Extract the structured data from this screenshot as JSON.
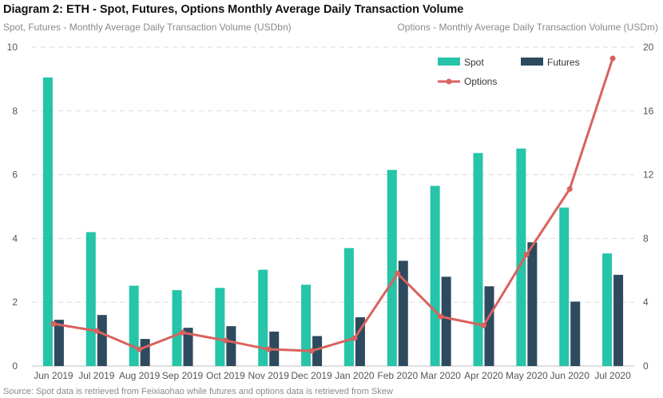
{
  "title": "Diagram 2: ETH - Spot, Futures, Options Monthly Average Daily Transaction Volume",
  "ylabel_left": "Spot, Futures - Monthly Average Daily Transaction Volume (USDbn)",
  "ylabel_right": "Options - Monthly Average Daily Transaction Volume (USDm)",
  "source": "Source: Spot data is retrieved from Feixiaohao while futures and options data is retrieved from Skew",
  "chart_data": {
    "type": "bar",
    "title": "Diagram 2: ETH - Spot, Futures, Options Monthly Average Daily Transaction Volume",
    "categories": [
      "Jun 2019",
      "Jul 2019",
      "Aug 2019",
      "Sep 2019",
      "Oct 2019",
      "Nov 2019",
      "Dec 2019",
      "Jan 2020",
      "Feb 2020",
      "Mar 2020",
      "Apr 2020",
      "May 2020",
      "Jun 2020",
      "Jul 2020"
    ],
    "series": [
      {
        "name": "Spot",
        "type": "bar",
        "axis": "left",
        "color": "#26c4a8",
        "values": [
          9.05,
          4.2,
          2.52,
          2.38,
          2.45,
          3.02,
          2.55,
          3.7,
          6.15,
          5.65,
          6.68,
          6.82,
          4.97,
          3.53
        ]
      },
      {
        "name": "Futures",
        "type": "bar",
        "axis": "left",
        "color": "#2e4a5f",
        "values": [
          1.45,
          1.6,
          0.85,
          1.2,
          1.25,
          1.08,
          0.94,
          1.53,
          3.3,
          2.8,
          2.5,
          3.88,
          2.02,
          2.86
        ]
      },
      {
        "name": "Options",
        "type": "line",
        "axis": "right",
        "color": "#d9625e",
        "values": [
          2.65,
          2.2,
          1.05,
          2.1,
          1.6,
          1.05,
          0.95,
          1.75,
          5.8,
          3.1,
          2.55,
          7.0,
          11.1,
          19.3
        ]
      }
    ],
    "ylim_left": [
      0,
      10
    ],
    "yticks_left": [
      "0",
      "2",
      "4",
      "6",
      "8",
      "10"
    ],
    "ylim_right": [
      0,
      20
    ],
    "yticks_right": [
      "0",
      "4",
      "8",
      "12",
      "16",
      "20"
    ],
    "grid": true,
    "legend_position": "top-right"
  }
}
